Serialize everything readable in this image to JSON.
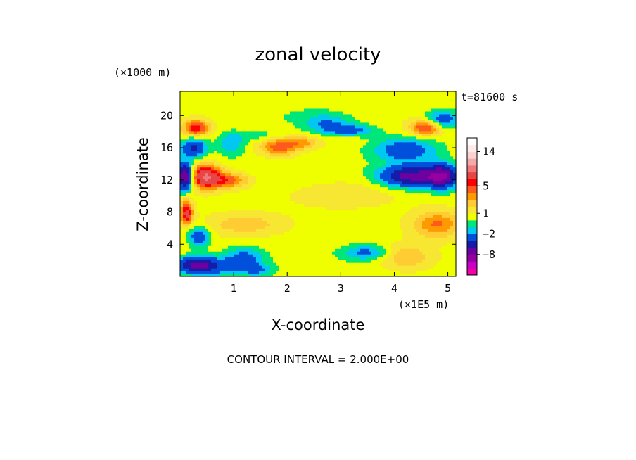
{
  "chart_data": {
    "type": "heatmap",
    "title": "zonal velocity",
    "xlabel": "X-coordinate",
    "ylabel": "Z-coordinate",
    "x_unit": "(×1E5 m)",
    "y_unit": "(×1000 m)",
    "time_label": "t=81600 s",
    "footer": "CONTOUR INTERVAL = 2.000E+00",
    "xlim": [
      0,
      5.15
    ],
    "ylim": [
      0,
      23
    ],
    "xticks": [
      1,
      2,
      3,
      4,
      5
    ],
    "yticks": [
      4,
      8,
      12,
      16,
      20
    ],
    "colorbar": {
      "levels": [
        -14,
        -12,
        -10,
        -8,
        -6,
        -4,
        -2,
        -1,
        0,
        1,
        2,
        3,
        4,
        5,
        6,
        8,
        10,
        12,
        14,
        16,
        18
      ],
      "tick_labels": [
        "14",
        "5",
        "1",
        "−2",
        "−8"
      ],
      "tick_values": [
        14,
        5,
        1,
        -2,
        -8
      ],
      "colors": [
        "#f000a0",
        "#c800c8",
        "#9600a0",
        "#6e00a0",
        "#1a1aa8",
        "#0050dc",
        "#00c8f0",
        "#00e67a",
        "#f0ff00",
        "#f7e632",
        "#ffcc33",
        "#ff9900",
        "#ff5a1e",
        "#ff0000",
        "#e64646",
        "#f07878",
        "#f5aaaa",
        "#fad2d2",
        "#ffeaea",
        "#ffffff"
      ]
    },
    "features": [
      {
        "x": 2.25,
        "z": 12.5,
        "sx": 1.8,
        "sz": 2.5,
        "u": -0.6
      },
      {
        "x": 3.0,
        "z": 10.5,
        "sx": 1.1,
        "sz": 1.8,
        "u": 1.2
      },
      {
        "x": 3.0,
        "z": 2.5,
        "sx": 1.5,
        "sz": 2.0,
        "u": -0.5
      },
      {
        "x": 3.5,
        "z": 3.0,
        "sx": 0.4,
        "sz": 0.9,
        "u": -3.0
      },
      {
        "x": 4.3,
        "z": 12.5,
        "sx": 0.55,
        "sz": 1.3,
        "u": -7.5
      },
      {
        "x": 4.9,
        "z": 12.5,
        "sx": 0.3,
        "sz": 1.5,
        "u": -7.5
      },
      {
        "x": 4.2,
        "z": 15.8,
        "sx": 0.6,
        "sz": 1.5,
        "u": -4.0
      },
      {
        "x": 4.6,
        "z": 18.5,
        "sx": 0.3,
        "sz": 1.0,
        "u": 5.0
      },
      {
        "x": 4.9,
        "z": 19.5,
        "sx": 0.3,
        "sz": 1.2,
        "u": -4.0
      },
      {
        "x": 0.1,
        "z": 12.5,
        "sx": 0.15,
        "sz": 1.6,
        "u": -10.0
      },
      {
        "x": 0.45,
        "z": 12.5,
        "sx": 0.3,
        "sz": 1.5,
        "u": 7.0
      },
      {
        "x": 0.9,
        "z": 12.0,
        "sx": 0.4,
        "sz": 1.0,
        "u": 4.0
      },
      {
        "x": 0.12,
        "z": 8.0,
        "sx": 0.12,
        "sz": 1.5,
        "u": 6.0
      },
      {
        "x": 0.25,
        "z": 16.0,
        "sx": 0.25,
        "sz": 1.2,
        "u": -5.0
      },
      {
        "x": 0.3,
        "z": 18.5,
        "sx": 0.25,
        "sz": 1.0,
        "u": 5.0
      },
      {
        "x": 0.3,
        "z": 1.5,
        "sx": 0.35,
        "sz": 1.0,
        "u": -6.0
      },
      {
        "x": 0.7,
        "z": 1.2,
        "sx": 0.6,
        "sz": 1.2,
        "u": -3.0
      },
      {
        "x": 1.2,
        "z": 2.5,
        "sx": 0.35,
        "sz": 1.2,
        "u": -3.0
      },
      {
        "x": 1.45,
        "z": 0.8,
        "sx": 0.3,
        "sz": 0.8,
        "u": -2.5
      },
      {
        "x": 1.2,
        "z": 6.5,
        "sx": 0.7,
        "sz": 1.3,
        "u": 2.0
      },
      {
        "x": 1.85,
        "z": 16.2,
        "sx": 0.35,
        "sz": 1.2,
        "u": 4.0
      },
      {
        "x": 2.3,
        "z": 16.7,
        "sx": 0.3,
        "sz": 0.8,
        "u": 2.5
      },
      {
        "x": 1.55,
        "z": 17.5,
        "sx": 0.55,
        "sz": 0.7,
        "u": -1.5
      },
      {
        "x": 2.3,
        "z": 20.0,
        "sx": 0.8,
        "sz": 1.3,
        "u": -0.8
      },
      {
        "x": 2.75,
        "z": 19.0,
        "sx": 0.45,
        "sz": 1.2,
        "u": -2.5
      },
      {
        "x": 3.2,
        "z": 18.2,
        "sx": 0.45,
        "sz": 0.7,
        "u": -3.0
      },
      {
        "x": 4.8,
        "z": 6.5,
        "sx": 0.45,
        "sz": 1.6,
        "u": 3.5
      },
      {
        "x": 4.2,
        "z": 2.5,
        "sx": 0.5,
        "sz": 1.5,
        "u": 2.5
      },
      {
        "x": 0.95,
        "z": 16.5,
        "sx": 0.25,
        "sz": 1.5,
        "u": -2.5
      },
      {
        "x": 0.35,
        "z": 5.0,
        "sx": 0.2,
        "sz": 1.3,
        "u": -4.0
      }
    ]
  }
}
